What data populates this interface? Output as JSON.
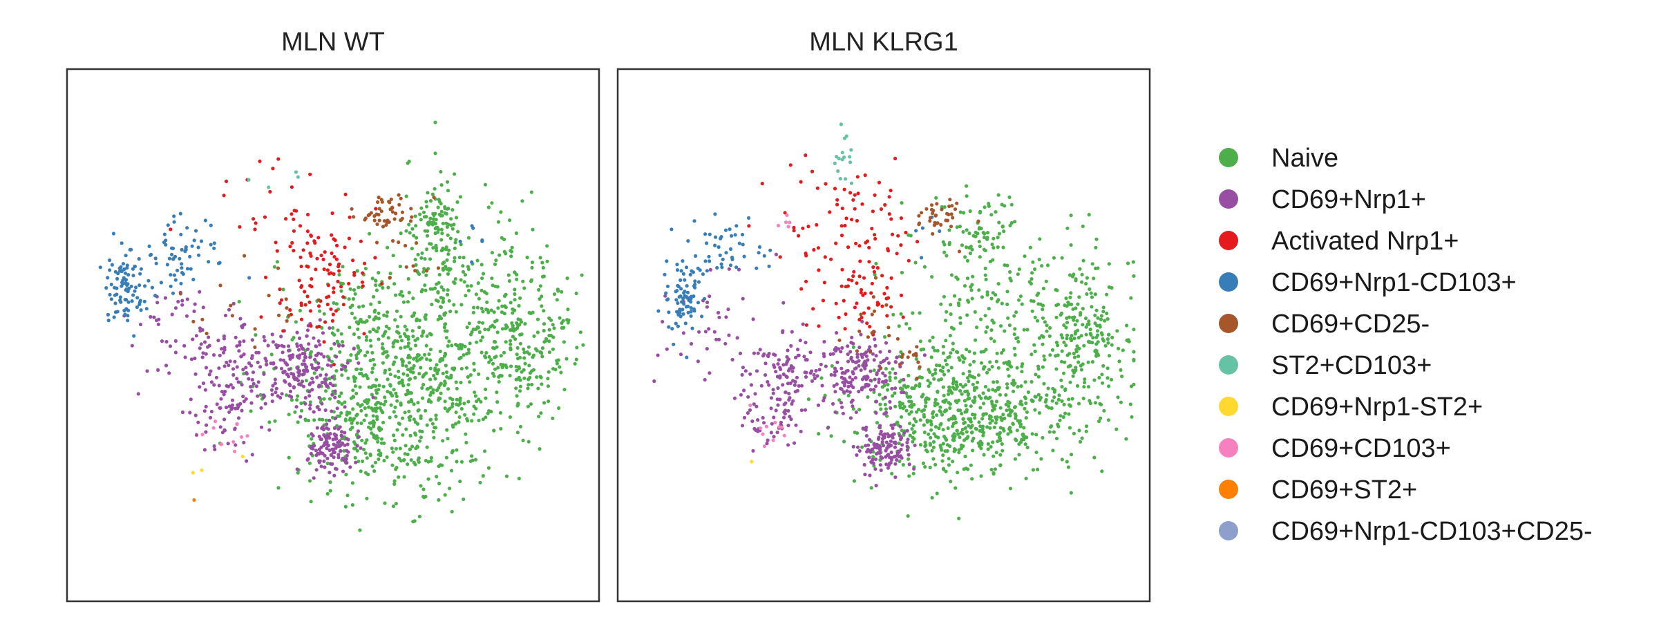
{
  "chart_data": [
    {
      "type": "scatter",
      "title": "MLN WT",
      "xlabel": "",
      "ylabel": "",
      "grid": false,
      "clusters": [
        {
          "series": "Naive",
          "cx": 0.61,
          "cy": 0.62,
          "sx": 0.11,
          "sy": 0.09,
          "n": 700
        },
        {
          "series": "Naive",
          "cx": 0.86,
          "cy": 0.5,
          "sx": 0.05,
          "sy": 0.08,
          "n": 260
        },
        {
          "series": "Naive",
          "cx": 0.71,
          "cy": 0.4,
          "sx": 0.06,
          "sy": 0.1,
          "n": 200
        },
        {
          "series": "Naive",
          "cx": 0.69,
          "cy": 0.29,
          "sx": 0.025,
          "sy": 0.03,
          "n": 70
        },
        {
          "series": "Naive",
          "cx": 0.56,
          "cy": 0.47,
          "sx": 0.03,
          "sy": 0.05,
          "n": 60
        },
        {
          "series": "CD69+Nrp1+",
          "cx": 0.5,
          "cy": 0.71,
          "sx": 0.025,
          "sy": 0.025,
          "n": 120
        },
        {
          "series": "CD69+Nrp1+",
          "cx": 0.45,
          "cy": 0.56,
          "sx": 0.04,
          "sy": 0.04,
          "n": 180
        },
        {
          "series": "CD69+Nrp1+",
          "cx": 0.31,
          "cy": 0.57,
          "sx": 0.05,
          "sy": 0.05,
          "n": 110
        },
        {
          "series": "CD69+Nrp1+",
          "cx": 0.3,
          "cy": 0.66,
          "sx": 0.03,
          "sy": 0.04,
          "n": 40
        },
        {
          "series": "CD69+Nrp1+",
          "cx": 0.2,
          "cy": 0.49,
          "sx": 0.06,
          "sy": 0.06,
          "n": 45
        },
        {
          "series": "Activated Nrp1+",
          "cx": 0.48,
          "cy": 0.39,
          "sx": 0.04,
          "sy": 0.06,
          "n": 100
        },
        {
          "series": "Activated Nrp1+",
          "cx": 0.38,
          "cy": 0.27,
          "sx": 0.05,
          "sy": 0.06,
          "n": 25
        },
        {
          "series": "CD69+Nrp1-CD103+",
          "cx": 0.11,
          "cy": 0.41,
          "sx": 0.02,
          "sy": 0.04,
          "n": 90
        },
        {
          "series": "CD69+Nrp1-CD103+",
          "cx": 0.22,
          "cy": 0.35,
          "sx": 0.04,
          "sy": 0.03,
          "n": 60
        },
        {
          "series": "CD69+Nrp1-CD103+",
          "cx": 0.76,
          "cy": 0.33,
          "sx": 0.02,
          "sy": 0.02,
          "n": 6
        },
        {
          "series": "CD69+CD25-",
          "cx": 0.6,
          "cy": 0.27,
          "sx": 0.03,
          "sy": 0.015,
          "n": 45
        },
        {
          "series": "CD69+CD25-",
          "cx": 0.62,
          "cy": 0.34,
          "sx": 0.03,
          "sy": 0.03,
          "n": 12
        },
        {
          "series": "CD69+CD25-",
          "cx": 0.34,
          "cy": 0.44,
          "sx": 0.06,
          "sy": 0.05,
          "n": 18
        },
        {
          "series": "ST2+CD103+",
          "cx": 0.4,
          "cy": 0.2,
          "sx": 0.03,
          "sy": 0.02,
          "n": 4
        },
        {
          "series": "CD69+Nrp1-ST2+",
          "cx": 0.28,
          "cy": 0.74,
          "sx": 0.03,
          "sy": 0.02,
          "n": 3
        },
        {
          "series": "CD69+CD103+",
          "cx": 0.3,
          "cy": 0.69,
          "sx": 0.02,
          "sy": 0.02,
          "n": 10
        },
        {
          "series": "CD69+ST2+",
          "cx": 0.24,
          "cy": 0.81,
          "sx": 0.005,
          "sy": 0.005,
          "n": 1
        }
      ]
    },
    {
      "type": "scatter",
      "title": "MLN KLRG1",
      "xlabel": "",
      "ylabel": "",
      "grid": false,
      "clusters": [
        {
          "series": "Naive",
          "cx": 0.65,
          "cy": 0.65,
          "sx": 0.1,
          "sy": 0.06,
          "n": 620
        },
        {
          "series": "Naive",
          "cx": 0.87,
          "cy": 0.5,
          "sx": 0.05,
          "sy": 0.08,
          "n": 270
        },
        {
          "series": "Naive",
          "cx": 0.67,
          "cy": 0.45,
          "sx": 0.07,
          "sy": 0.09,
          "n": 160
        },
        {
          "series": "Naive",
          "cx": 0.68,
          "cy": 0.3,
          "sx": 0.03,
          "sy": 0.04,
          "n": 60
        },
        {
          "series": "CD69+Nrp1+",
          "cx": 0.5,
          "cy": 0.71,
          "sx": 0.025,
          "sy": 0.025,
          "n": 120
        },
        {
          "series": "CD69+Nrp1+",
          "cx": 0.46,
          "cy": 0.57,
          "sx": 0.04,
          "sy": 0.035,
          "n": 170
        },
        {
          "series": "CD69+Nrp1+",
          "cx": 0.31,
          "cy": 0.57,
          "sx": 0.04,
          "sy": 0.04,
          "n": 110
        },
        {
          "series": "CD69+Nrp1+",
          "cx": 0.28,
          "cy": 0.66,
          "sx": 0.03,
          "sy": 0.03,
          "n": 40
        },
        {
          "series": "CD69+Nrp1+",
          "cx": 0.18,
          "cy": 0.48,
          "sx": 0.06,
          "sy": 0.06,
          "n": 40
        },
        {
          "series": "Activated Nrp1+",
          "cx": 0.46,
          "cy": 0.37,
          "sx": 0.05,
          "sy": 0.07,
          "n": 110
        },
        {
          "series": "Activated Nrp1+",
          "cx": 0.35,
          "cy": 0.28,
          "sx": 0.04,
          "sy": 0.06,
          "n": 20
        },
        {
          "series": "CD69+Nrp1-CD103+",
          "cx": 0.12,
          "cy": 0.43,
          "sx": 0.02,
          "sy": 0.04,
          "n": 80
        },
        {
          "series": "CD69+Nrp1-CD103+",
          "cx": 0.2,
          "cy": 0.34,
          "sx": 0.04,
          "sy": 0.03,
          "n": 45
        },
        {
          "series": "CD69+Nrp1-CD103+",
          "cx": 0.56,
          "cy": 0.3,
          "sx": 0.02,
          "sy": 0.02,
          "n": 5
        },
        {
          "series": "CD69+CD25-",
          "cx": 0.61,
          "cy": 0.28,
          "sx": 0.025,
          "sy": 0.015,
          "n": 35
        },
        {
          "series": "CD69+CD25-",
          "cx": 0.47,
          "cy": 0.5,
          "sx": 0.03,
          "sy": 0.04,
          "n": 18
        },
        {
          "series": "CD69+CD25-",
          "cx": 0.56,
          "cy": 0.55,
          "sx": 0.015,
          "sy": 0.015,
          "n": 12
        },
        {
          "series": "ST2+CD103+",
          "cx": 0.42,
          "cy": 0.17,
          "sx": 0.015,
          "sy": 0.025,
          "n": 16
        },
        {
          "series": "CD69+Nrp1-ST2+",
          "cx": 0.25,
          "cy": 0.74,
          "sx": 0.01,
          "sy": 0.01,
          "n": 1
        },
        {
          "series": "CD69+CD103+",
          "cx": 0.29,
          "cy": 0.67,
          "sx": 0.02,
          "sy": 0.02,
          "n": 10
        },
        {
          "series": "CD69+CD103+",
          "cx": 0.32,
          "cy": 0.29,
          "sx": 0.01,
          "sy": 0.01,
          "n": 5
        }
      ]
    }
  ],
  "legend": {
    "position": "right",
    "items": [
      {
        "label": "Naive",
        "color": "#4daf4a"
      },
      {
        "label": "CD69+Nrp1+",
        "color": "#984ea3"
      },
      {
        "label": "Activated Nrp1+",
        "color": "#e41a1c"
      },
      {
        "label": "CD69+Nrp1-CD103+",
        "color": "#377eb8"
      },
      {
        "label": "CD69+CD25-",
        "color": "#a65628"
      },
      {
        "label": "ST2+CD103+",
        "color": "#66c2a5"
      },
      {
        "label": "CD69+Nrp1-ST2+",
        "color": "#ffd92f"
      },
      {
        "label": "CD69+CD103+",
        "color": "#f781bf"
      },
      {
        "label": "CD69+ST2+",
        "color": "#ff7f00"
      },
      {
        "label": "CD69+Nrp1-CD103+CD25-",
        "color": "#8da0cb"
      }
    ]
  }
}
